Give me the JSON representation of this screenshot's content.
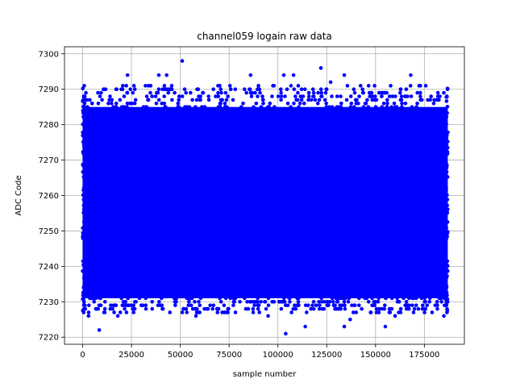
{
  "chart_data": {
    "type": "scatter",
    "title": "channel059 logain raw data",
    "xlabel": "sample number",
    "ylabel": "ADC Code",
    "xlim": [
      -9300,
      195500
    ],
    "ylim": [
      7218,
      7302
    ],
    "x_ticks": [
      0,
      25000,
      50000,
      75000,
      100000,
      125000,
      150000,
      175000
    ],
    "y_ticks": [
      7220,
      7230,
      7240,
      7250,
      7260,
      7270,
      7280,
      7290,
      7300
    ],
    "grid": true,
    "marker_color": "#0000ff",
    "series": [
      {
        "x_range": [
          0,
          187000
        ],
        "dense_band": [
          7227,
          7291
        ],
        "outliers": [
          {
            "x": 8500,
            "y": 7222
          },
          {
            "x": 51000,
            "y": 7298
          },
          {
            "x": 104000,
            "y": 7221
          },
          {
            "x": 114000,
            "y": 7223
          },
          {
            "x": 122000,
            "y": 7296
          },
          {
            "x": 134000,
            "y": 7223
          },
          {
            "x": 137000,
            "y": 7225
          },
          {
            "x": 155000,
            "y": 7223
          },
          {
            "x": 23000,
            "y": 7294
          },
          {
            "x": 39000,
            "y": 7294
          },
          {
            "x": 43000,
            "y": 7294
          },
          {
            "x": 86000,
            "y": 7294
          },
          {
            "x": 103000,
            "y": 7294
          },
          {
            "x": 108000,
            "y": 7294
          },
          {
            "x": 127000,
            "y": 7292
          },
          {
            "x": 134000,
            "y": 7294
          },
          {
            "x": 168000,
            "y": 7294
          },
          {
            "x": 3000,
            "y": 7226
          },
          {
            "x": 18000,
            "y": 7226
          },
          {
            "x": 58000,
            "y": 7226
          },
          {
            "x": 95000,
            "y": 7226
          },
          {
            "x": 160000,
            "y": 7226
          },
          {
            "x": 185000,
            "y": 7226
          }
        ]
      }
    ]
  }
}
